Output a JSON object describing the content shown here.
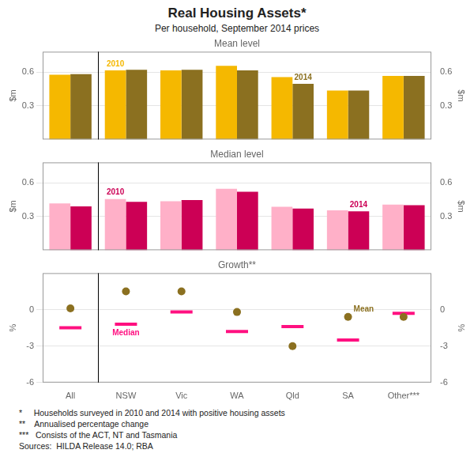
{
  "title": "Real Housing Assets*",
  "subtitle": "Per household, September 2014 prices",
  "footnotes": [
    "*     Households surveyed in 2010 and 2014 with positive housing assets",
    "**    Annualised percentage change",
    "***   Consists of the ACT, NT and Tasmania",
    "Sources:  HILDA Release 14.0; RBA"
  ],
  "chart_data": [
    {
      "type": "bar",
      "title": "Mean level",
      "categories": [
        "All",
        "NSW",
        "Vic",
        "WA",
        "Qld",
        "SA",
        "Other***"
      ],
      "series": [
        {
          "name": "2010",
          "color": "#F5B800",
          "values": [
            0.575,
            0.615,
            0.615,
            0.655,
            0.555,
            0.435,
            0.565
          ]
        },
        {
          "name": "2014",
          "color": "#8B7020",
          "values": [
            0.58,
            0.62,
            0.62,
            0.615,
            0.495,
            0.435,
            0.565
          ]
        }
      ],
      "ylabel": "$m",
      "y2label": "$m",
      "ylim": [
        0,
        0.78
      ],
      "yticks": [
        0.3,
        0.6
      ],
      "y2lim": [
        0,
        0.78
      ],
      "y2ticks": [
        0.3,
        0.6
      ],
      "grid": true,
      "tick_labels": "y",
      "annotations": [
        {
          "text": "2010",
          "color": "#F5B800",
          "category": "NSW",
          "series": "2010"
        },
        {
          "text": "2014",
          "color": "#8B7020",
          "category": "Qld",
          "series": "2014"
        }
      ]
    },
    {
      "type": "bar",
      "title": "Median level",
      "categories": [
        "All",
        "NSW",
        "Vic",
        "WA",
        "Qld",
        "SA",
        "Other***"
      ],
      "series": [
        {
          "name": "2010",
          "color": "#FFB0C8",
          "values": [
            0.415,
            0.455,
            0.435,
            0.545,
            0.385,
            0.355,
            0.405
          ]
        },
        {
          "name": "2014",
          "color": "#CC0055",
          "values": [
            0.39,
            0.43,
            0.445,
            0.52,
            0.37,
            0.345,
            0.4
          ]
        }
      ],
      "ylabel": "$m",
      "y2label": "$m",
      "ylim": [
        0,
        0.78
      ],
      "yticks": [
        0.3,
        0.6
      ],
      "y2lim": [
        0,
        0.78
      ],
      "y2ticks": [
        0.3,
        0.6
      ],
      "grid": true,
      "tick_labels": "y",
      "annotations": [
        {
          "text": "2010",
          "color": "#CC0055",
          "category": "NSW",
          "series": "2010"
        },
        {
          "text": "2014",
          "color": "#CC0055",
          "category": "SA",
          "series": "2014"
        }
      ]
    },
    {
      "type": "scatter",
      "title": "Growth**",
      "categories": [
        "All",
        "NSW",
        "Vic",
        "WA",
        "Qld",
        "SA",
        "Other***"
      ],
      "series": [
        {
          "name": "Mean",
          "color": "#8B7020",
          "marker": "circle",
          "values": [
            0.1,
            1.5,
            1.5,
            -0.2,
            -3.0,
            -0.6,
            -0.6
          ]
        },
        {
          "name": "Median",
          "color": "#FF1080",
          "marker": "line",
          "values": [
            -1.5,
            -1.2,
            -0.2,
            -1.8,
            -1.4,
            -2.5,
            -0.3
          ]
        }
      ],
      "ylabel": "%",
      "y2label": "%",
      "ylim": [
        -6,
        3
      ],
      "yticks": [
        -6,
        -3,
        0
      ],
      "y2lim": [
        -6,
        3
      ],
      "y2ticks": [
        -6,
        -3,
        0
      ],
      "grid": true,
      "annotations": [
        {
          "text": "Mean",
          "color": "#8B7020",
          "category": "SA",
          "series": "Mean"
        },
        {
          "text": "Median",
          "color": "#FF1080",
          "category": "NSW",
          "series": "Median"
        }
      ]
    }
  ]
}
